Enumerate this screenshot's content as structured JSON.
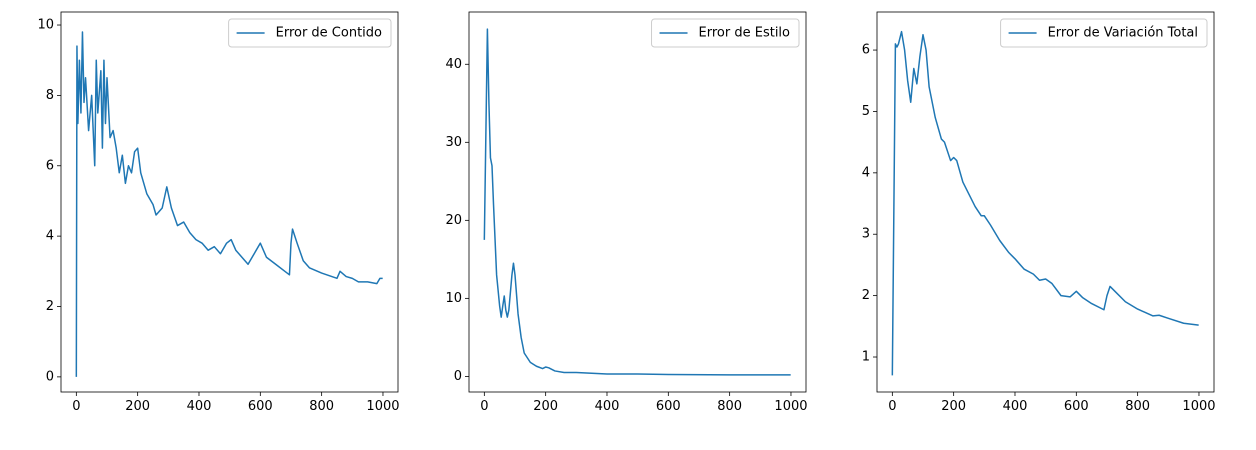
{
  "chart_data": [
    {
      "type": "line",
      "legend": "upper right",
      "x": [
        0,
        2,
        5,
        10,
        15,
        20,
        25,
        30,
        40,
        50,
        60,
        65,
        70,
        80,
        85,
        90,
        95,
        100,
        110,
        120,
        130,
        140,
        150,
        160,
        170,
        180,
        190,
        200,
        210,
        230,
        250,
        260,
        280,
        295,
        310,
        330,
        350,
        370,
        390,
        410,
        430,
        450,
        470,
        490,
        505,
        520,
        540,
        560,
        580,
        600,
        620,
        650,
        680,
        695,
        700,
        705,
        720,
        740,
        760,
        800,
        850,
        860,
        880,
        900,
        920,
        950,
        980,
        990,
        999
      ],
      "series": [
        {
          "name": "Error de Contido",
          "color": "#1f77b4",
          "values": [
            0,
            9.4,
            7.2,
            9.0,
            7.5,
            9.8,
            7.8,
            8.5,
            7.0,
            8.0,
            6.0,
            9.0,
            7.5,
            8.7,
            6.5,
            9.0,
            7.2,
            8.5,
            6.8,
            7.0,
            6.5,
            5.8,
            6.3,
            5.5,
            6.0,
            5.8,
            6.4,
            6.5,
            5.8,
            5.2,
            4.9,
            4.6,
            4.8,
            5.4,
            4.8,
            4.3,
            4.4,
            4.1,
            3.9,
            3.8,
            3.6,
            3.7,
            3.5,
            3.8,
            3.9,
            3.6,
            3.4,
            3.2,
            3.5,
            3.8,
            3.4,
            3.2,
            3.0,
            2.9,
            3.8,
            4.2,
            3.8,
            3.3,
            3.1,
            2.95,
            2.8,
            3.0,
            2.85,
            2.8,
            2.7,
            2.7,
            2.65,
            2.8,
            2.8
          ]
        }
      ],
      "xlim": [
        -50,
        1049
      ],
      "xticks": [
        0,
        200,
        400,
        600,
        800,
        1000
      ],
      "ylim": [
        -0.43,
        10.37
      ],
      "yticks": [
        0,
        2,
        4,
        6,
        8,
        10
      ]
    },
    {
      "type": "line",
      "legend": "upper right",
      "x": [
        0,
        10,
        15,
        20,
        25,
        30,
        40,
        50,
        55,
        60,
        65,
        70,
        75,
        80,
        90,
        95,
        100,
        110,
        120,
        130,
        150,
        170,
        190,
        200,
        210,
        230,
        260,
        300,
        350,
        400,
        500,
        600,
        800,
        999
      ],
      "series": [
        {
          "name": "Error de Estilo",
          "color": "#1f77b4",
          "values": [
            17.5,
            44.5,
            35,
            28,
            27,
            22,
            13,
            9,
            7.6,
            9,
            10.3,
            8.5,
            7.6,
            8.5,
            13,
            14.5,
            13,
            8,
            5,
            3,
            1.8,
            1.3,
            1.0,
            1.2,
            1.1,
            0.7,
            0.5,
            0.5,
            0.4,
            0.3,
            0.3,
            0.25,
            0.2,
            0.2
          ]
        }
      ],
      "xlim": [
        -50,
        1049
      ],
      "xticks": [
        0,
        200,
        400,
        600,
        800,
        1000
      ],
      "ylim": [
        -2.0,
        46.7
      ],
      "yticks": [
        0,
        10,
        20,
        30,
        40
      ]
    },
    {
      "type": "line",
      "legend": "upper right",
      "x": [
        0,
        10,
        15,
        20,
        30,
        40,
        50,
        60,
        70,
        80,
        90,
        100,
        110,
        120,
        140,
        160,
        170,
        190,
        200,
        210,
        230,
        250,
        270,
        290,
        300,
        320,
        350,
        380,
        400,
        430,
        460,
        480,
        500,
        520,
        550,
        580,
        600,
        620,
        650,
        690,
        700,
        710,
        730,
        760,
        800,
        850,
        870,
        900,
        950,
        999
      ],
      "series": [
        {
          "name": "Error de Variación Total",
          "color": "#1f77b4",
          "values": [
            0.7,
            6.1,
            6.05,
            6.1,
            6.3,
            6.0,
            5.5,
            5.15,
            5.7,
            5.45,
            5.9,
            6.25,
            6.0,
            5.4,
            4.9,
            4.55,
            4.5,
            4.2,
            4.25,
            4.2,
            3.85,
            3.65,
            3.45,
            3.3,
            3.3,
            3.15,
            2.9,
            2.7,
            2.6,
            2.43,
            2.35,
            2.25,
            2.27,
            2.2,
            2.0,
            1.98,
            2.07,
            1.97,
            1.87,
            1.77,
            2.0,
            2.15,
            2.05,
            1.9,
            1.78,
            1.67,
            1.68,
            1.63,
            1.55,
            1.52
          ]
        }
      ],
      "xlim": [
        -50,
        1049
      ],
      "xticks": [
        0,
        200,
        400,
        600,
        800,
        1000
      ],
      "ylim": [
        0.43,
        6.62
      ],
      "yticks": [
        1,
        2,
        3,
        4,
        5,
        6
      ]
    }
  ]
}
